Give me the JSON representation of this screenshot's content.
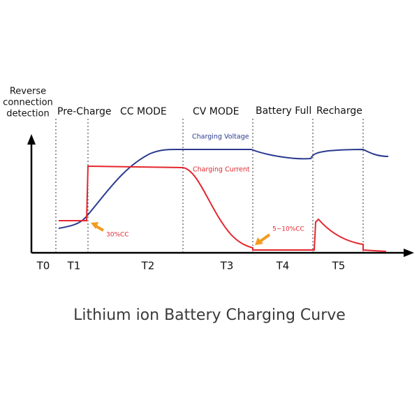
{
  "header_label": [
    "Reverse",
    "connection",
    "detection"
  ],
  "phases": [
    "Pre-Charge",
    "CC MODE",
    "CV MODE",
    "Battery Full",
    "Recharge"
  ],
  "curves": {
    "voltage": "Charging Voltage",
    "current": "Charging Current"
  },
  "annotations": [
    "30%CC",
    "5~10%CC"
  ],
  "time_labels": [
    "T0",
    "T1",
    "T2",
    "T3",
    "T4",
    "T5"
  ],
  "title": "Lithium ion Battery Charging Curve"
}
